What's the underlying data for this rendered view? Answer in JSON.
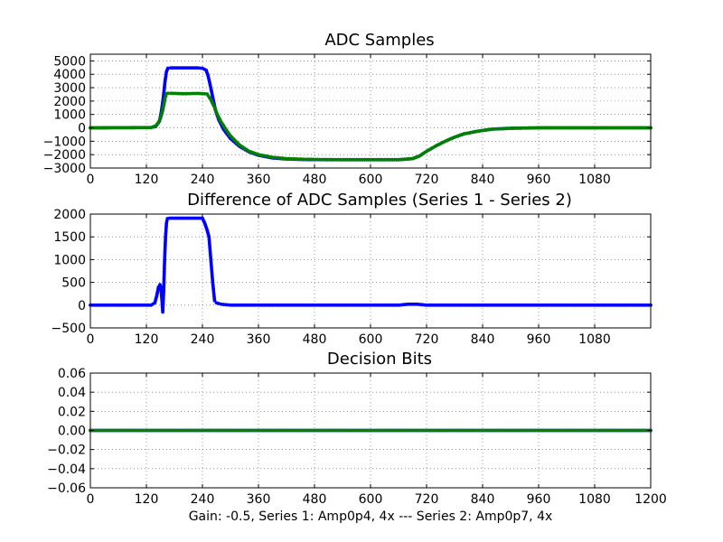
{
  "figure": {
    "caption": "Gain: -0.5, Series 1: Amp0p4, 4x --- Series 2: Amp0p7, 4x"
  },
  "colors": {
    "series1": "#0000ff",
    "series2": "#008000",
    "grid": "#555555",
    "axes": "#000000"
  },
  "chart_data": [
    {
      "type": "scatter",
      "title": "ADC Samples",
      "xlabel": "",
      "ylabel": "",
      "xlim": [
        0,
        1200
      ],
      "ylim": [
        -3000,
        5500
      ],
      "xticks": [
        0,
        120,
        240,
        360,
        480,
        600,
        720,
        840,
        960,
        1080
      ],
      "yticks": [
        -3000,
        -2000,
        -1000,
        0,
        1000,
        2000,
        3000,
        4000,
        5000
      ],
      "grid": true,
      "markers_connected": true,
      "series": [
        {
          "color": "#0000ff",
          "x": [
            0,
            130,
            140,
            148,
            152,
            156,
            160,
            163,
            166,
            172,
            200,
            230,
            240,
            248,
            252,
            256,
            262,
            268,
            275,
            285,
            300,
            320,
            340,
            360,
            390,
            420,
            460,
            500,
            540,
            600,
            660,
            690,
            705,
            720,
            740,
            760,
            780,
            800,
            830,
            860,
            900,
            960,
            1020,
            1080,
            1200
          ],
          "y": [
            0,
            20,
            100,
            500,
            1200,
            2200,
            3500,
            4200,
            4450,
            4480,
            4480,
            4480,
            4450,
            4300,
            3900,
            3300,
            2300,
            1300,
            600,
            -100,
            -800,
            -1400,
            -1800,
            -2050,
            -2250,
            -2330,
            -2370,
            -2380,
            -2380,
            -2380,
            -2380,
            -2300,
            -2100,
            -1750,
            -1350,
            -1000,
            -700,
            -450,
            -250,
            -100,
            -30,
            0,
            0,
            0,
            0
          ]
        },
        {
          "color": "#008000",
          "x": [
            0,
            130,
            140,
            145,
            150,
            155,
            160,
            163,
            166,
            172,
            200,
            230,
            240,
            250,
            258,
            265,
            272,
            280,
            290,
            300,
            320,
            340,
            360,
            390,
            420,
            460,
            500,
            540,
            600,
            660,
            690,
            705,
            720,
            740,
            760,
            780,
            800,
            830,
            860,
            900,
            960,
            1020,
            1080,
            1200
          ],
          "y": [
            0,
            20,
            150,
            350,
            700,
            1300,
            2200,
            2550,
            2580,
            2580,
            2550,
            2570,
            2550,
            2530,
            2100,
            1600,
            1000,
            450,
            -100,
            -600,
            -1300,
            -1750,
            -2000,
            -2200,
            -2300,
            -2350,
            -2370,
            -2380,
            -2380,
            -2380,
            -2300,
            -2100,
            -1750,
            -1350,
            -1000,
            -700,
            -450,
            -250,
            -100,
            -30,
            0,
            0,
            0,
            0
          ]
        }
      ]
    },
    {
      "type": "line",
      "title": "Difference of ADC Samples (Series 1 - Series 2)",
      "xlabel": "",
      "ylabel": "",
      "xlim": [
        0,
        1200
      ],
      "ylim": [
        -500,
        2000
      ],
      "xticks": [
        0,
        120,
        240,
        360,
        480,
        600,
        720,
        840,
        960,
        1080
      ],
      "yticks": [
        -500,
        0,
        500,
        1000,
        1500,
        2000
      ],
      "grid": true,
      "markers_connected": true,
      "series": [
        {
          "color": "#0000ff",
          "x": [
            0,
            130,
            138,
            142,
            146,
            149,
            151,
            153,
            155,
            157,
            159,
            161,
            163,
            165,
            170,
            200,
            240,
            245,
            250,
            254,
            258,
            262,
            266,
            270,
            280,
            290,
            300,
            360,
            660,
            680,
            700,
            720,
            1200
          ],
          "y": [
            0,
            0,
            50,
            200,
            400,
            450,
            400,
            150,
            -150,
            300,
            1000,
            1500,
            1800,
            1900,
            1910,
            1910,
            1910,
            1800,
            1650,
            1500,
            1000,
            500,
            100,
            50,
            20,
            10,
            0,
            0,
            0,
            20,
            20,
            0,
            0
          ]
        }
      ]
    },
    {
      "type": "scatter",
      "title": "Decision Bits",
      "xlabel": "Gain: -0.5, Series 1: Amp0p4, 4x --- Series 2: Amp0p7, 4x",
      "ylabel": "",
      "xlim": [
        0,
        1200
      ],
      "ylim": [
        -0.06,
        0.06
      ],
      "xticks": [
        0,
        120,
        240,
        360,
        480,
        600,
        720,
        840,
        960,
        1080,
        1200
      ],
      "yticks": [
        -0.06,
        -0.04,
        -0.02,
        0.0,
        0.02,
        0.04,
        0.06
      ],
      "ytick_labels": [
        "−0.06",
        "−0.04",
        "−0.02",
        "0.00",
        "0.02",
        "0.04",
        "0.06"
      ],
      "grid": true,
      "markers_connected": true,
      "series": [
        {
          "color": "#0000ff",
          "x": [
            0,
            1200
          ],
          "y": [
            0,
            0
          ]
        },
        {
          "color": "#008000",
          "x": [
            0,
            1200
          ],
          "y": [
            0,
            0
          ]
        }
      ]
    }
  ]
}
